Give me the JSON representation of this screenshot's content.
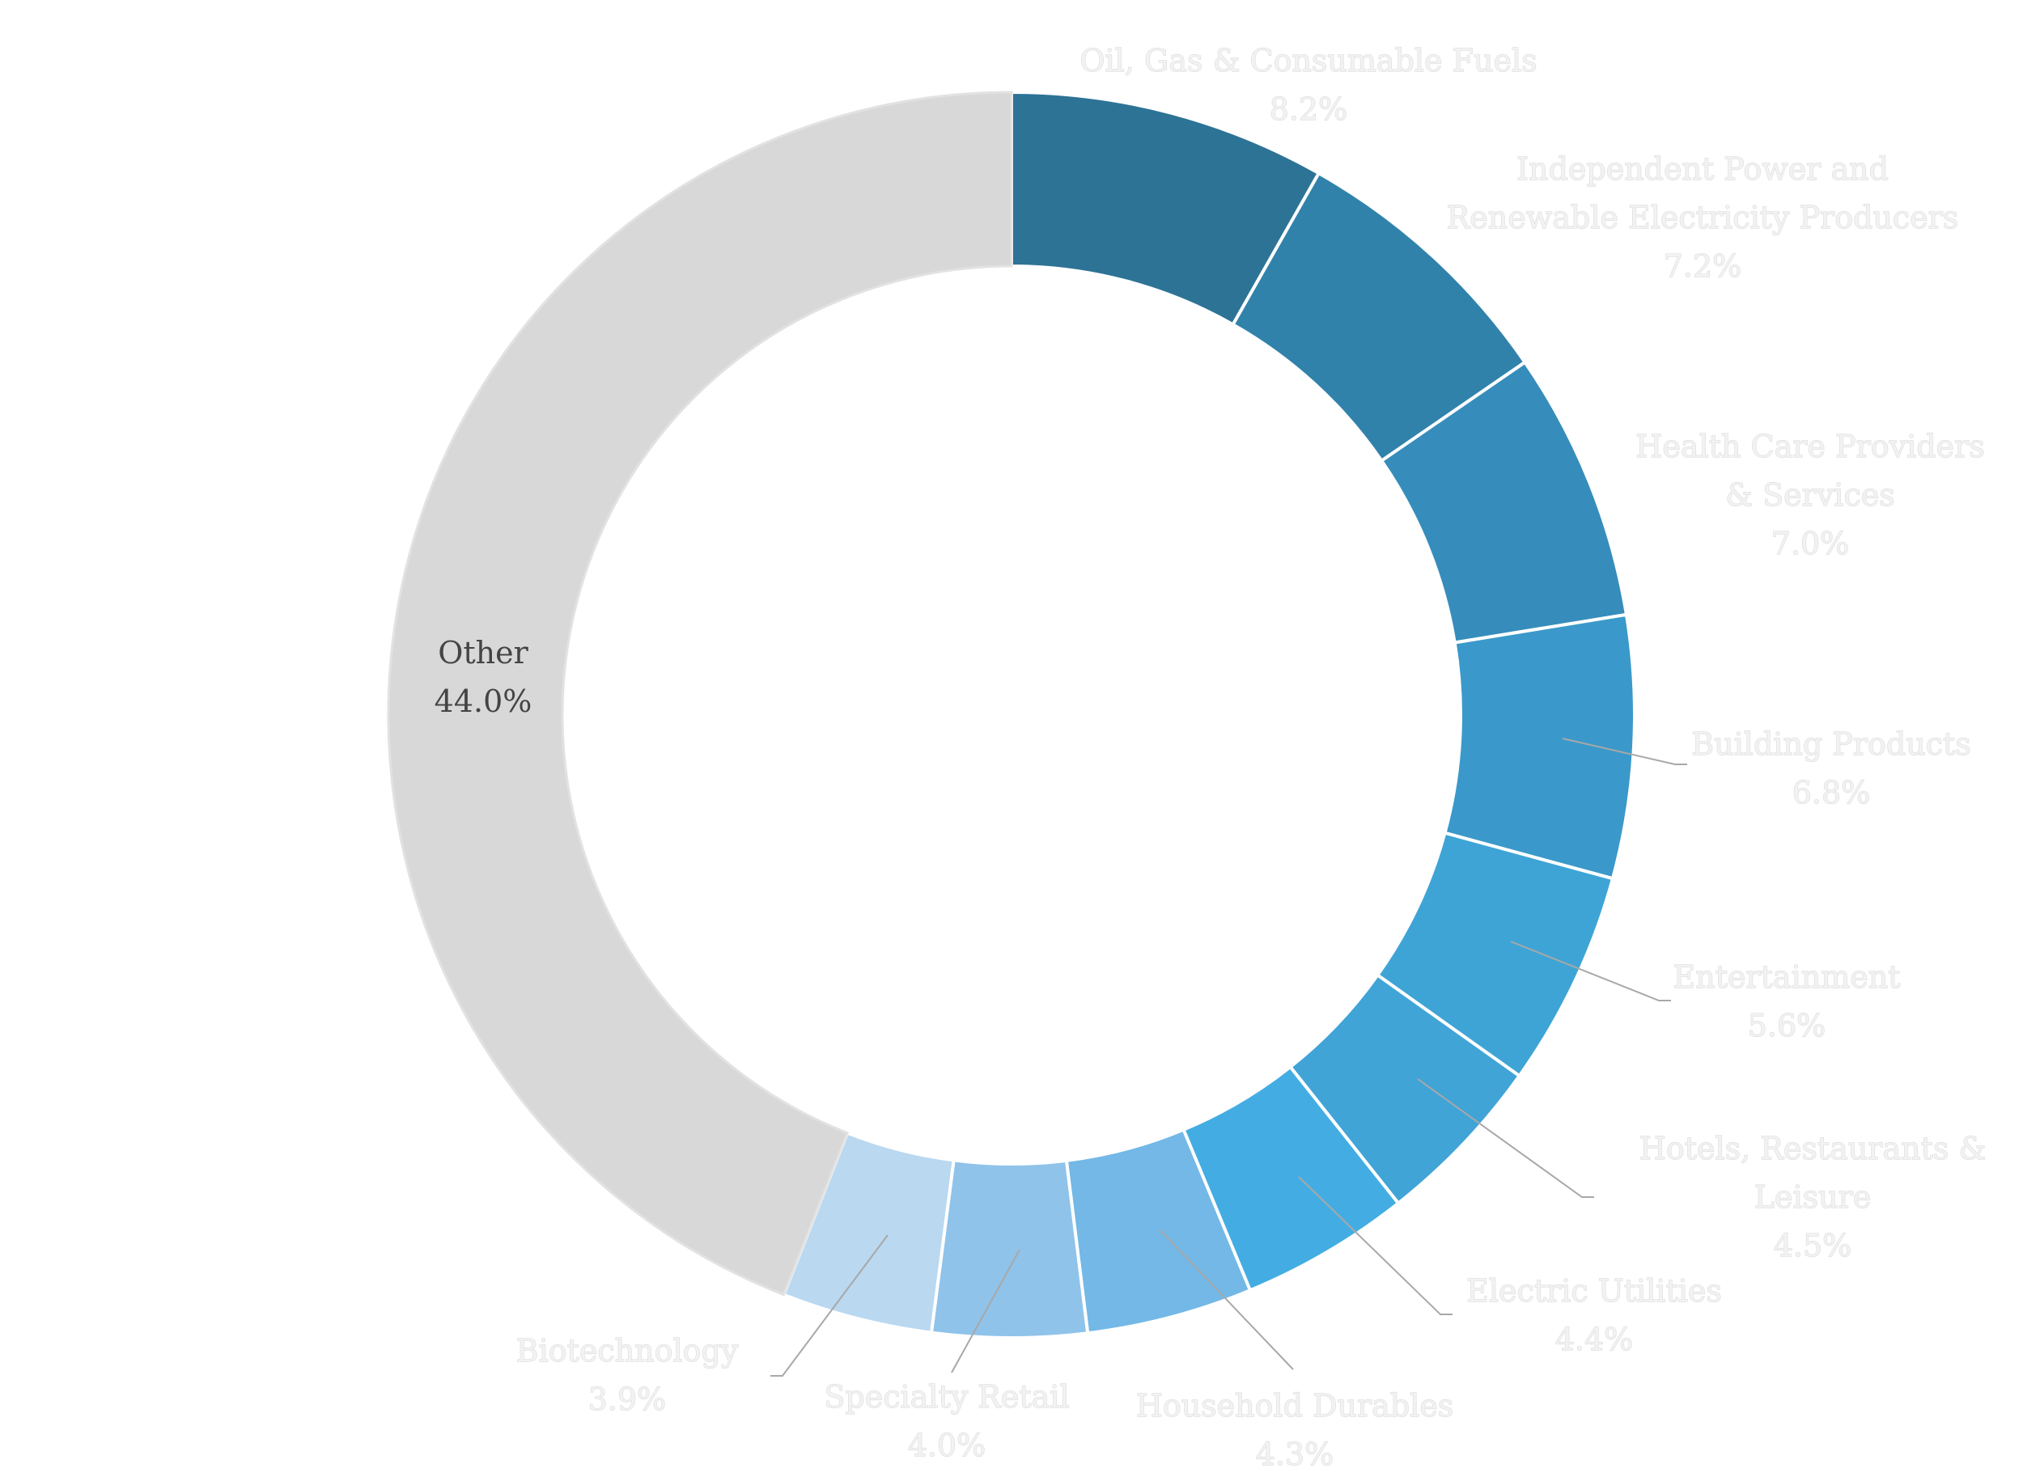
{
  "chart_data": {
    "type": "pie",
    "donut": true,
    "title": "",
    "start": "top, clockwise",
    "slices": [
      {
        "label": [
          "Oil, Gas & Consumable Fuels"
        ],
        "value": 8.2,
        "display": "8.2%",
        "color": "#2d7396"
      },
      {
        "label": [
          "Independent Power and",
          "Renewable Electricity Producers"
        ],
        "value": 7.2,
        "display": "7.2%",
        "color": "#3182ab"
      },
      {
        "label": [
          "Health Care Providers",
          "& Services"
        ],
        "value": 7.0,
        "display": "7.0%",
        "color": "#368dbb"
      },
      {
        "label": [
          "Building Products"
        ],
        "value": 6.8,
        "display": "6.8%",
        "color": "#3a99ca"
      },
      {
        "label": [
          "Entertainment"
        ],
        "value": 5.6,
        "display": "5.6%",
        "color": "#3ea4d6"
      },
      {
        "label": [
          "Hotels, Restaurants &",
          "Leisure"
        ],
        "value": 4.5,
        "display": "4.5%",
        "color": "#41a4d7"
      },
      {
        "label": [
          "Electric Utilities"
        ],
        "value": 4.4,
        "display": "4.4%",
        "color": "#43ade3"
      },
      {
        "label": [
          "Household Durables"
        ],
        "value": 4.3,
        "display": "4.3%",
        "color": "#73b8e6"
      },
      {
        "label": [
          "Specialty Retail"
        ],
        "value": 4.0,
        "display": "4.0%",
        "color": "#8fc3ea"
      },
      {
        "label": [
          "Biotechnology"
        ],
        "value": 3.9,
        "display": "3.9%",
        "color": "#bad8f0"
      },
      {
        "label": [
          "Other"
        ],
        "value": 44.0,
        "display": "44.0%",
        "color": "#d8d8d8"
      }
    ]
  }
}
